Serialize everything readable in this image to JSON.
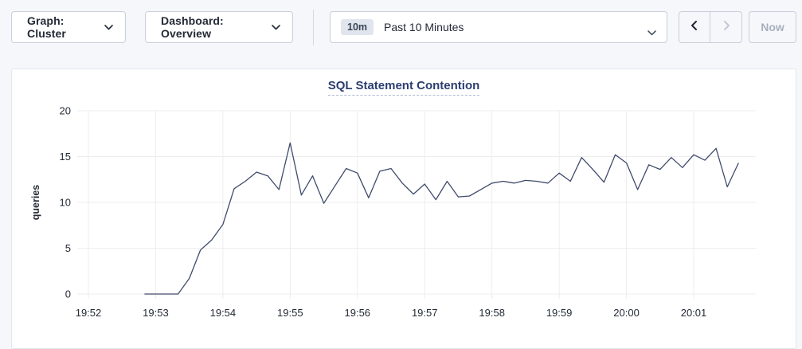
{
  "toolbar": {
    "graph_dropdown": {
      "label": "Graph: Cluster"
    },
    "dashboard_dropdown": {
      "label": "Dashboard: Overview"
    },
    "time_picker": {
      "badge": "10m",
      "label": "Past 10 Minutes"
    },
    "now_button": {
      "label": "Now"
    }
  },
  "colors": {
    "page_bg": "#f5f7fa",
    "card_bg": "#ffffff",
    "line": "#404b6c",
    "grid": "#ededed",
    "title": "#2b3e70",
    "disabled": "#a9b0bd"
  },
  "chart_data": {
    "type": "line",
    "title": "SQL Statement Contention",
    "xlabel": "",
    "ylabel": "queries",
    "ylim": [
      0,
      20
    ],
    "y_ticks": [
      0,
      5,
      10,
      15,
      20
    ],
    "x_ticks": [
      "19:52",
      "19:53",
      "19:54",
      "19:55",
      "19:56",
      "19:57",
      "19:58",
      "19:59",
      "20:00",
      "20:01"
    ],
    "grid": true,
    "legend_position": "none",
    "line_color": "#404b6c",
    "series": [
      {
        "name": "queries",
        "times": [
          "19:52:50",
          "19:53:00",
          "19:53:10",
          "19:53:20",
          "19:53:30",
          "19:53:40",
          "19:53:50",
          "19:54:00",
          "19:54:10",
          "19:54:20",
          "19:54:30",
          "19:54:40",
          "19:54:50",
          "19:55:00",
          "19:55:10",
          "19:55:20",
          "19:55:30",
          "19:55:40",
          "19:55:50",
          "19:56:00",
          "19:56:10",
          "19:56:20",
          "19:56:30",
          "19:56:40",
          "19:56:50",
          "19:57:00",
          "19:57:10",
          "19:57:20",
          "19:57:30",
          "19:57:40",
          "19:57:50",
          "19:58:00",
          "19:58:10",
          "19:58:20",
          "19:58:30",
          "19:58:40",
          "19:58:50",
          "19:59:00",
          "19:59:10",
          "19:59:20",
          "19:59:30",
          "19:59:40",
          "19:59:50",
          "20:00:00",
          "20:00:10",
          "20:00:20",
          "20:00:30",
          "20:00:40",
          "20:00:50",
          "20:01:00",
          "20:01:10",
          "20:01:20",
          "20:01:30",
          "20:01:40"
        ],
        "values": [
          0,
          0,
          0,
          0,
          1.7,
          4.8,
          5.9,
          7.6,
          11.5,
          12.3,
          13.3,
          12.9,
          11.4,
          16.5,
          10.8,
          12.9,
          9.9,
          11.8,
          13.7,
          13.2,
          10.5,
          13.4,
          13.7,
          12.1,
          10.9,
          12.0,
          10.3,
          12.3,
          10.6,
          10.7,
          11.4,
          12.1,
          12.3,
          12.1,
          12.4,
          12.3,
          12.1,
          13.2,
          12.3,
          14.9,
          13.6,
          12.2,
          15.2,
          14.3,
          11.4,
          14.1,
          13.6,
          14.9,
          13.8,
          15.2,
          14.6,
          15.9,
          11.7,
          14.3
        ]
      }
    ]
  }
}
